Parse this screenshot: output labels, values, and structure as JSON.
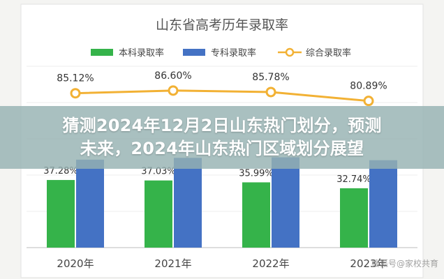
{
  "chart_data": {
    "type": "bar",
    "title": "山东省高考历年录取率",
    "categories": [
      "2020年",
      "2021年",
      "2022年",
      "2023年"
    ],
    "series": [
      {
        "name": "本科录取率",
        "kind": "bar",
        "color": "#35b34a",
        "values": [
          37.28,
          37.03,
          35.99,
          32.74
        ],
        "labels": [
          "37.28%",
          "37.03%",
          "35.99%",
          "32.74%"
        ]
      },
      {
        "name": "专科录取率",
        "kind": "bar",
        "color": "#4472c4",
        "values": [
          48.5,
          49.5,
          49.8,
          48.2
        ],
        "labels": [
          "",
          "",
          "",
          ""
        ]
      },
      {
        "name": "综合录取率",
        "kind": "line",
        "color": "#f2b134",
        "values": [
          85.12,
          86.6,
          85.78,
          80.89
        ],
        "labels": [
          "85.12%",
          "86.60%",
          "85.78%",
          "80.89%"
        ]
      }
    ],
    "ylim": [
      0,
      100
    ],
    "grid": true,
    "legend_position": "top"
  },
  "overlay": {
    "line1": "猜测2024年12月2日山东热门划分，预测",
    "line2": "未来，2024年山东热门区域划分展望"
  },
  "watermark": "搜狐号@家校共育"
}
